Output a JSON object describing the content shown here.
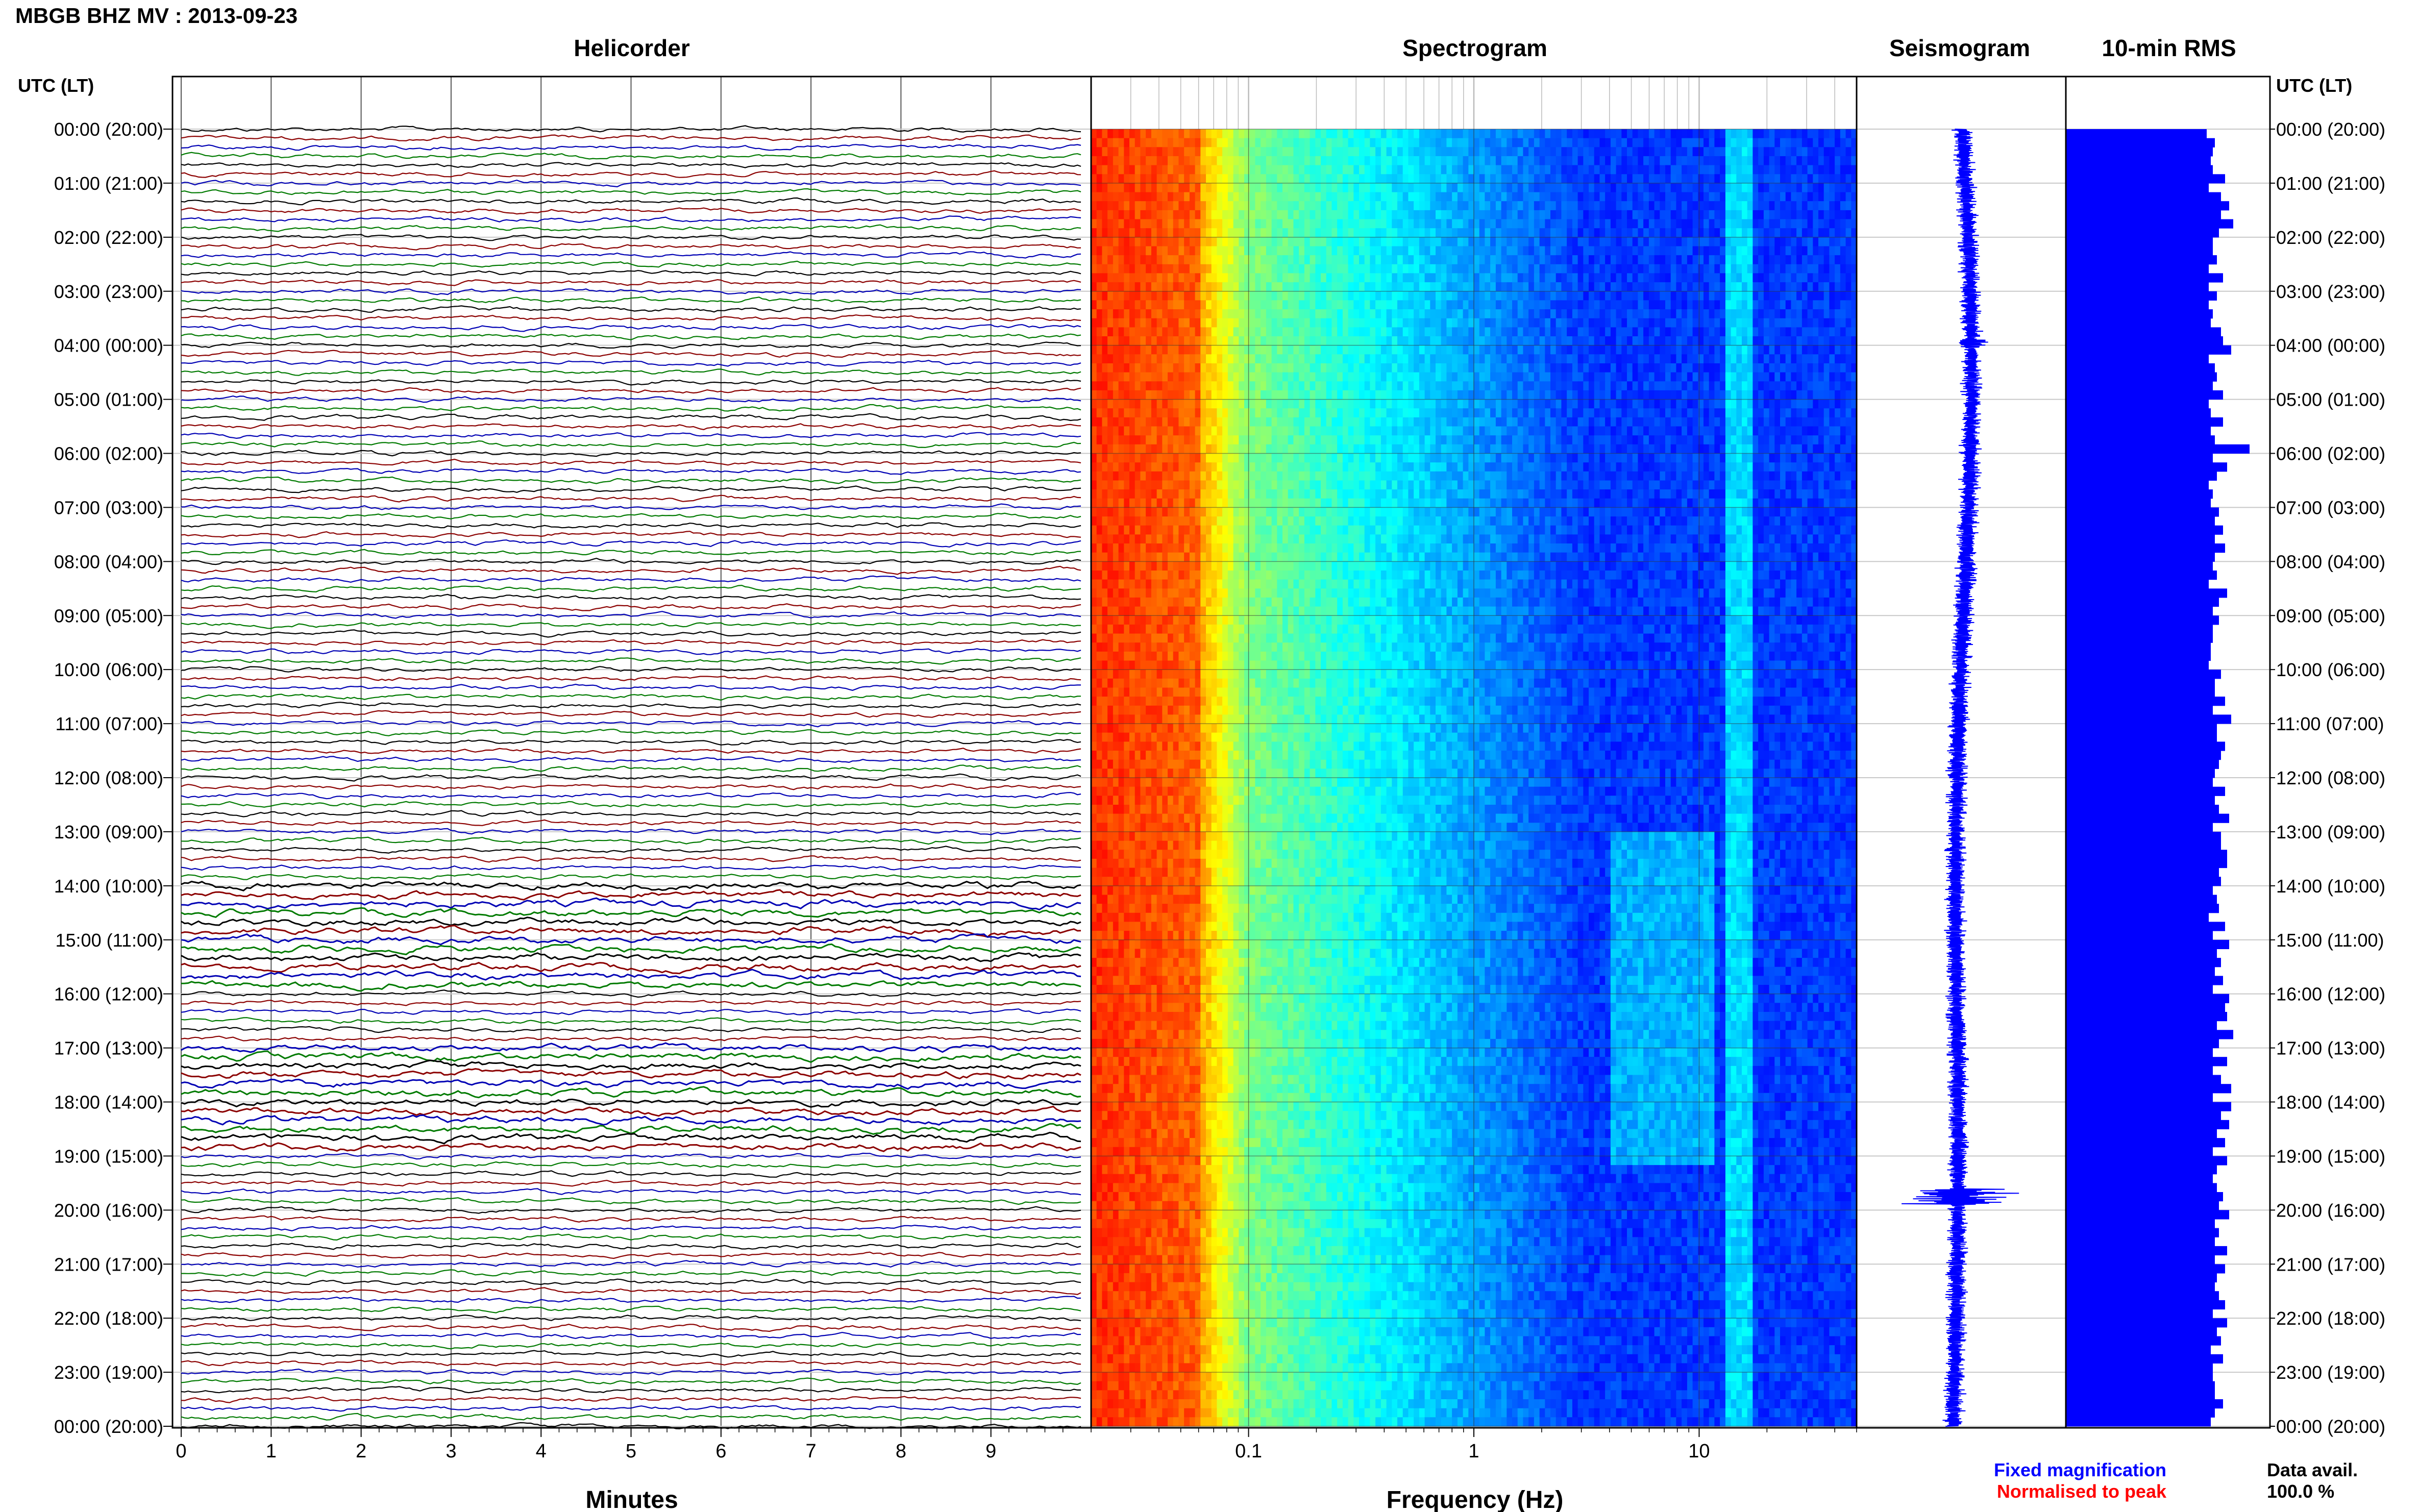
{
  "header": {
    "station_title": "MBGB BHZ MV : 2013-09-23",
    "left_axis_label": "UTC (LT)",
    "right_axis_label": "UTC (LT)"
  },
  "panels": {
    "helicorder": "Helicorder",
    "spectrogram": "Spectrogram",
    "seismogram": "Seismogram",
    "rms": "10-min RMS"
  },
  "time_labels": [
    "00:00 (20:00)",
    "01:00 (21:00)",
    "02:00 (22:00)",
    "03:00 (23:00)",
    "04:00 (00:00)",
    "05:00 (01:00)",
    "06:00 (02:00)",
    "07:00 (03:00)",
    "08:00 (04:00)",
    "09:00 (05:00)",
    "10:00 (06:00)",
    "11:00 (07:00)",
    "12:00 (08:00)",
    "13:00 (09:00)",
    "14:00 (10:00)",
    "15:00 (11:00)",
    "16:00 (12:00)",
    "17:00 (13:00)",
    "18:00 (14:00)",
    "19:00 (15:00)",
    "20:00 (16:00)",
    "21:00 (17:00)",
    "22:00 (18:00)",
    "23:00 (19:00)",
    "00:00 (20:00)"
  ],
  "footer": {
    "fixed_magnification": "Fixed magnification",
    "normalised_to_peak": "Normalised to peak",
    "data_avail_label": "Data avail.",
    "data_avail_value": "100.0 %"
  },
  "colors": {
    "trace_cycle": [
      "#000000",
      "#8b0000",
      "#0000b4",
      "#007a00"
    ],
    "fixed_magnification": "#0000ff",
    "normalised_to_peak": "#ff0000",
    "rms_bar": "#0000ff",
    "seismogram": "#0000ff",
    "gridline": "#c8c8c8"
  },
  "chart_data": [
    {
      "type": "line",
      "panel": "helicorder",
      "title": "Helicorder",
      "xlabel": "Minutes",
      "x_ticks": [
        "0",
        "1",
        "2",
        "3",
        "4",
        "5",
        "6",
        "7",
        "8",
        "9"
      ],
      "xlim": [
        0,
        10
      ],
      "rows_per_hour": 6,
      "trace_count": 144,
      "noisy_hours_utc": [
        14,
        15,
        17,
        18
      ]
    },
    {
      "type": "heatmap",
      "panel": "spectrogram",
      "title": "Spectrogram",
      "xlabel": "Frequency (Hz)",
      "x_scale": "log",
      "x_ticks": [
        "0.1",
        "1",
        "10"
      ],
      "xlim": [
        0.02,
        50
      ],
      "colormap": "jet",
      "features": {
        "low_freq_band_hz": [
          0.02,
          0.06
        ],
        "persistent_band_hz": 15,
        "elevated_activity_utc_hours": [
          13,
          19
        ],
        "elevated_activity_hz": [
          4,
          12
        ]
      }
    },
    {
      "type": "line",
      "panel": "seismogram",
      "title": "Seismogram"
    },
    {
      "type": "bar",
      "panel": "rms",
      "title": "10-min RMS",
      "orientation": "horizontal",
      "bar_count": 144,
      "values": [
        0.69,
        0.73,
        0.72,
        0.71,
        0.72,
        0.78,
        0.7,
        0.76,
        0.8,
        0.76,
        0.82,
        0.75,
        0.72,
        0.72,
        0.74,
        0.7,
        0.77,
        0.7,
        0.74,
        0.7,
        0.72,
        0.71,
        0.76,
        0.77,
        0.81,
        0.7,
        0.73,
        0.74,
        0.72,
        0.77,
        0.7,
        0.71,
        0.77,
        0.71,
        0.73,
        0.9,
        0.72,
        0.79,
        0.74,
        0.7,
        0.72,
        0.71,
        0.75,
        0.73,
        0.77,
        0.73,
        0.78,
        0.73,
        0.72,
        0.74,
        0.7,
        0.79,
        0.75,
        0.72,
        0.75,
        0.72,
        0.72,
        0.71,
        0.71,
        0.7,
        0.76,
        0.73,
        0.73,
        0.78,
        0.72,
        0.81,
        0.74,
        0.74,
        0.78,
        0.76,
        0.75,
        0.73,
        0.72,
        0.78,
        0.73,
        0.75,
        0.8,
        0.72,
        0.76,
        0.76,
        0.79,
        0.79,
        0.75,
        0.76,
        0.72,
        0.74,
        0.75,
        0.7,
        0.78,
        0.72,
        0.8,
        0.74,
        0.76,
        0.73,
        0.77,
        0.72,
        0.8,
        0.78,
        0.79,
        0.74,
        0.82,
        0.75,
        0.72,
        0.79,
        0.72,
        0.76,
        0.81,
        0.72,
        0.81,
        0.76,
        0.8,
        0.74,
        0.78,
        0.72,
        0.79,
        0.74,
        0.72,
        0.74,
        0.77,
        0.75,
        0.8,
        0.73,
        0.75,
        0.73,
        0.79,
        0.73,
        0.78,
        0.74,
        0.73,
        0.75,
        0.78,
        0.72,
        0.79,
        0.74,
        0.76,
        0.71,
        0.77,
        0.72,
        0.72,
        0.73,
        0.73,
        0.77,
        0.73,
        0.71
      ]
    }
  ]
}
